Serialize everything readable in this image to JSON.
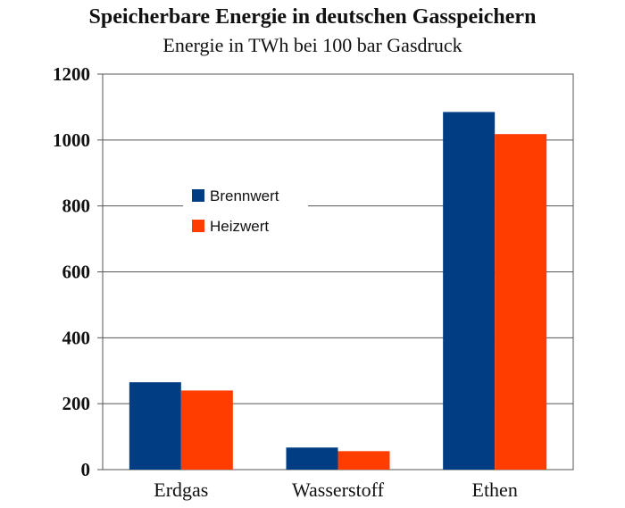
{
  "chart_data": {
    "type": "bar",
    "title": "Speicherbare Energie in deutschen Gasspeichern",
    "subtitle": "Energie in TWh bei 100 bar Gasdruck",
    "xlabel": "",
    "ylabel": "",
    "categories": [
      "Erdgas",
      "Wasserstoff",
      "Ethen"
    ],
    "series": [
      {
        "name": "Brennwert",
        "color": "#003d82",
        "values": [
          265,
          67,
          1085
        ]
      },
      {
        "name": "Heizwert",
        "color": "#ff3d00",
        "values": [
          240,
          56,
          1018
        ]
      }
    ],
    "ylim": [
      0,
      1200
    ],
    "yticks": [
      0,
      200,
      400,
      600,
      800,
      1000,
      1200
    ],
    "grid": true,
    "legend_position": "upper-left inside plot"
  }
}
